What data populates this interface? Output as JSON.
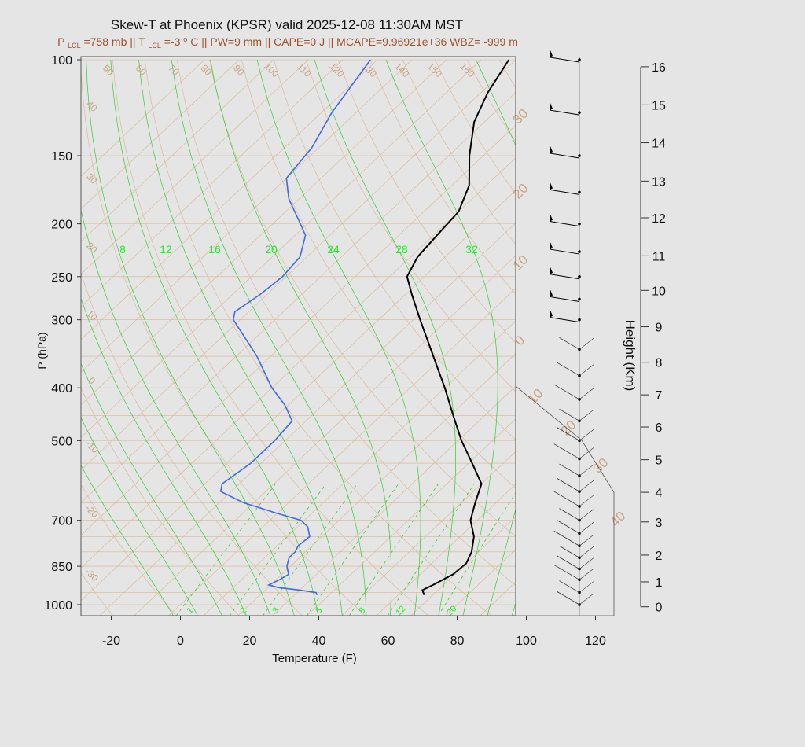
{
  "colors": {
    "background": "#e5e5e5",
    "grid": "#d9b48f",
    "isotherm_label": "#c8a37f",
    "mixing_ratio": "#33cc33",
    "dewpoint": "#4169e1",
    "temperature": "#000000",
    "subtitle": "#a0522d"
  },
  "chart_data": {
    "type": "skew-t",
    "title": "Skew-T at Phoenix (KPSR) valid 2025-12-08 11:30AM MST",
    "subtitle": {
      "p_lcl_prefix": "P",
      "p_lcl_sub": "LCL",
      "p_lcl_value": "=758 mb || T",
      "t_lcl_sub": "LCL",
      "t_lcl_value": "=-3",
      "deg": "o",
      "rest": "C || PW=9 mm || CAPE=0 J || MCAPE=9.96921e+36 WBZ= -999 m"
    },
    "xlabel": "Temperature (F)",
    "ylabel": "P (hPa)",
    "y2label": "Height (Km)",
    "x_ticks": [
      "-20",
      "0",
      "20",
      "40",
      "60",
      "80",
      "100",
      "120"
    ],
    "x_tick_values": [
      -20,
      0,
      20,
      40,
      60,
      80,
      100,
      120
    ],
    "p_ticks": [
      "100",
      "150",
      "200",
      "250",
      "300",
      "400",
      "500",
      "700",
      "850",
      "1000"
    ],
    "p_tick_values": [
      100,
      150,
      200,
      250,
      300,
      400,
      500,
      700,
      850,
      1000
    ],
    "height_ticks": [
      "0",
      "1",
      "2",
      "3",
      "4",
      "5",
      "6",
      "7",
      "8",
      "9",
      "10",
      "11",
      "12",
      "13",
      "14",
      "15",
      "16"
    ],
    "height_km_at_p": [
      {
        "km": 0,
        "p": 1009
      },
      {
        "km": 1,
        "p": 908
      },
      {
        "km": 2,
        "p": 811
      },
      {
        "km": 3,
        "p": 705
      },
      {
        "km": 4,
        "p": 622
      },
      {
        "km": 5,
        "p": 542
      },
      {
        "km": 6,
        "p": 472
      },
      {
        "km": 7,
        "p": 412
      },
      {
        "km": 8,
        "p": 359
      },
      {
        "km": 9,
        "p": 309
      },
      {
        "km": 10,
        "p": 265
      },
      {
        "km": 11,
        "p": 229
      },
      {
        "km": 12,
        "p": 195
      },
      {
        "km": 13,
        "p": 167
      },
      {
        "km": 14,
        "p": 142
      },
      {
        "km": 15,
        "p": 121
      },
      {
        "km": 16,
        "p": 103
      }
    ],
    "isotherm_labels": [
      "50",
      "60",
      "70",
      "80",
      "90",
      "100",
      "110",
      "120",
      "130",
      "140",
      "150",
      "160"
    ],
    "isotherm_left_labels": [
      "40",
      "30",
      "20",
      "10",
      "0",
      "-10",
      "-20",
      "-30"
    ],
    "isotherm_right_labels": [
      "30",
      "20",
      "10",
      "0",
      "10",
      "20",
      "30",
      "40"
    ],
    "mixing_ratio_top_labels": [
      "8",
      "12",
      "16",
      "20",
      "24",
      "28",
      "32"
    ],
    "mixing_ratio_top_values": [
      8,
      12,
      16,
      20,
      24,
      28,
      32
    ],
    "mixing_ratio_bottom_labels": [
      "1",
      "2",
      "3",
      "5",
      "8",
      "12",
      "20"
    ],
    "mixing_ratio_bottom_values": [
      1,
      2,
      3,
      5,
      8,
      12,
      20
    ],
    "series": [
      {
        "name": "temperature",
        "points": [
          {
            "p": 960,
            "t": 67.5
          },
          {
            "p": 940,
            "t": 65.5
          },
          {
            "p": 920,
            "t": 67
          },
          {
            "p": 880,
            "t": 69.5
          },
          {
            "p": 840,
            "t": 70
          },
          {
            "p": 800,
            "t": 68
          },
          {
            "p": 750,
            "t": 64
          },
          {
            "p": 700,
            "t": 58
          },
          {
            "p": 650,
            "t": 54
          },
          {
            "p": 600,
            "t": 50
          },
          {
            "p": 550,
            "t": 41
          },
          {
            "p": 500,
            "t": 31
          },
          {
            "p": 450,
            "t": 21
          },
          {
            "p": 400,
            "t": 10
          },
          {
            "p": 350,
            "t": -3
          },
          {
            "p": 300,
            "t": -18
          },
          {
            "p": 270,
            "t": -28
          },
          {
            "p": 250,
            "t": -35
          },
          {
            "p": 230,
            "t": -38
          },
          {
            "p": 210,
            "t": -39
          },
          {
            "p": 190,
            "t": -40
          },
          {
            "p": 170,
            "t": -45
          },
          {
            "p": 150,
            "t": -54
          },
          {
            "p": 130,
            "t": -63
          },
          {
            "p": 115,
            "t": -68
          },
          {
            "p": 100,
            "t": -72
          }
        ]
      },
      {
        "name": "dewpoint",
        "points": [
          {
            "p": 960,
            "t": 36.5
          },
          {
            "p": 950,
            "t": 35.5
          },
          {
            "p": 940,
            "t": 30
          },
          {
            "p": 930,
            "t": 23
          },
          {
            "p": 920,
            "t": 19.5
          },
          {
            "p": 900,
            "t": 21
          },
          {
            "p": 880,
            "t": 22
          },
          {
            "p": 850,
            "t": 19
          },
          {
            "p": 820,
            "t": 17
          },
          {
            "p": 800,
            "t": 17
          },
          {
            "p": 780,
            "t": 16
          },
          {
            "p": 750,
            "t": 16.5
          },
          {
            "p": 720,
            "t": 13
          },
          {
            "p": 700,
            "t": 9
          },
          {
            "p": 680,
            "t": 0
          },
          {
            "p": 650,
            "t": -13
          },
          {
            "p": 620,
            "t": -23
          },
          {
            "p": 600,
            "t": -25
          },
          {
            "p": 550,
            "t": -23
          },
          {
            "p": 500,
            "t": -23
          },
          {
            "p": 460,
            "t": -24
          },
          {
            "p": 430,
            "t": -31
          },
          {
            "p": 400,
            "t": -40
          },
          {
            "p": 350,
            "t": -54
          },
          {
            "p": 300,
            "t": -72
          },
          {
            "p": 290,
            "t": -74
          },
          {
            "p": 270,
            "t": -72
          },
          {
            "p": 250,
            "t": -71
          },
          {
            "p": 230,
            "t": -72
          },
          {
            "p": 210,
            "t": -77
          },
          {
            "p": 200,
            "t": -82
          },
          {
            "p": 180,
            "t": -93
          },
          {
            "p": 165,
            "t": -100
          },
          {
            "p": 145,
            "t": -102
          },
          {
            "p": 125,
            "t": -107
          },
          {
            "p": 100,
            "t": -112
          }
        ]
      }
    ],
    "wind_barb_pressures": [
      100,
      125,
      150,
      175,
      200,
      225,
      250,
      275,
      300,
      340,
      380,
      420,
      460,
      500,
      540,
      580,
      620,
      660,
      700,
      740,
      780,
      820,
      860,
      900,
      950,
      1000
    ],
    "xlim": [
      -28,
      125
    ],
    "ylim_hpa": [
      100,
      1050
    ],
    "grid": true
  }
}
